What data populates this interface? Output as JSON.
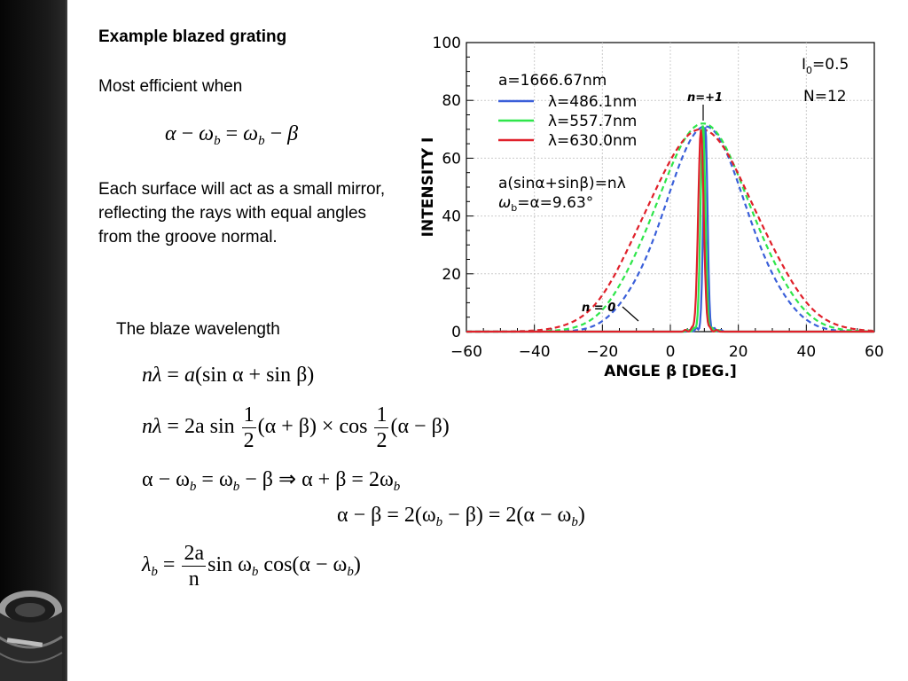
{
  "slide": {
    "heading": "Example blazed grating",
    "efficient": "Most efficient when",
    "description": "Each surface will act as a small mirror, reflecting the rays with equal angles from the groove normal.",
    "blaze_label": "The blaze wavelength"
  },
  "equations": {
    "eq_condition": {
      "a": "α",
      "m1": "−",
      "w1": "ω",
      "b1": "b",
      "eq": "=",
      "w2": "ω",
      "b2": "b",
      "m2": "−",
      "beta": "β"
    },
    "eq1": {
      "lhs": "nλ",
      "eq": "=",
      "a": "a",
      "rest": "(sin α + sin β)"
    },
    "eq2": {
      "lhs": "nλ",
      "eq": "=",
      "coef": "2a sin",
      "num1": "1",
      "den1": "2",
      "mid": "(α + β) × cos",
      "num2": "1",
      "den2": "2",
      "end": "(α − β)"
    },
    "eq3": {
      "p1": "α − ω",
      "s1": "b",
      "p2": " = ω",
      "s2": "b",
      "p3": " − β ⇒ α + β = 2ω",
      "s3": "b"
    },
    "eq4": {
      "p1": "α − β = 2(ω",
      "s1": "b",
      "p2": " − β) = 2(α − ω",
      "s2": "b",
      "p3": ")"
    },
    "eq5": {
      "lhs": "λ",
      "sub": "b",
      "eq": "=",
      "num": "2a",
      "den": "n",
      "p1": "sin ω",
      "s1": "b",
      "p2": " cos(α − ω",
      "s2": "b",
      "p3": ")"
    }
  },
  "chart_data": {
    "type": "line",
    "xlabel": "ANGLE β [DEG.]",
    "ylabel": "INTENSITY I",
    "xlim": [
      -60,
      60
    ],
    "ylim": [
      0,
      100
    ],
    "xticks": [
      -60,
      -40,
      -20,
      0,
      20,
      40,
      60
    ],
    "yticks": [
      0,
      20,
      40,
      60,
      80,
      100
    ],
    "legend_title": "a=1666.67nm",
    "series": [
      {
        "name": "λ=486.1nm",
        "color": "#3a5fd9",
        "peak": 71,
        "center": 10.3,
        "wcore": 0.62,
        "wenv": 11.8
      },
      {
        "name": "λ=557.7nm",
        "color": "#2ee64a",
        "peak": 72,
        "center": 9.6,
        "wcore": 0.71,
        "wenv": 13.5
      },
      {
        "name": "λ=630.0nm",
        "color": "#e0202a",
        "peak": 70,
        "center": 9.0,
        "wcore": 0.8,
        "wenv": 15.3
      }
    ],
    "annotations": {
      "formula": "a(sinα+sinβ)=nλ",
      "omega_main": "ω",
      "omega_sub": "b",
      "omega_rest": "=α=9.63°",
      "i0_main": "I",
      "i0_sub": "0",
      "i0_rest": "=0.5",
      "n_count": "N=12",
      "n_plus1": "n=+1",
      "n_zero": "n = 0"
    }
  }
}
